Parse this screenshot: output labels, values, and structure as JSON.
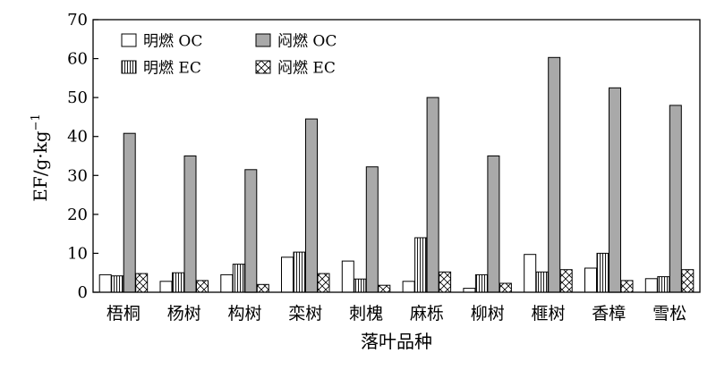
{
  "chart_data": {
    "type": "bar",
    "title": "",
    "xlabel": "落叶品种",
    "ylabel": "EF/g·kg",
    "ylabel_exponent": "−1",
    "ylim": [
      0,
      70
    ],
    "yticks": [
      0,
      10,
      20,
      30,
      40,
      50,
      60,
      70
    ],
    "grid": false,
    "legend_position": "top-left",
    "categories": [
      "梧桐",
      "杨树",
      "构树",
      "栾树",
      "刺槐",
      "麻栎",
      "柳树",
      "榧树",
      "香樟",
      "雪松"
    ],
    "series": [
      {
        "name": "明燃 OC",
        "pattern": "white",
        "values": [
          4.5,
          2.8,
          4.5,
          9.0,
          8.0,
          2.8,
          1.0,
          9.7,
          6.2,
          3.5
        ]
      },
      {
        "name": "明燃 EC",
        "pattern": "vertical-lines",
        "values": [
          4.2,
          5.0,
          7.2,
          10.3,
          3.4,
          14.0,
          4.5,
          5.2,
          10.0,
          4.0
        ]
      },
      {
        "name": "闷燃 OC",
        "pattern": "gray",
        "values": [
          40.8,
          35.0,
          31.5,
          44.5,
          32.2,
          50.0,
          35.0,
          60.3,
          52.5,
          48.0
        ]
      },
      {
        "name": "闷燃 EC",
        "pattern": "cross-hatch",
        "values": [
          4.8,
          3.0,
          2.0,
          4.8,
          1.8,
          5.2,
          2.3,
          5.8,
          3.0,
          5.8
        ]
      }
    ],
    "legend_order": [
      0,
      2,
      1,
      3
    ]
  }
}
